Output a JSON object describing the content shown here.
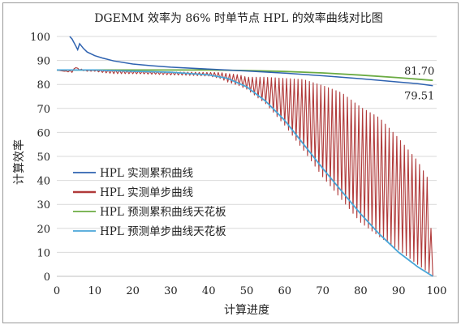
{
  "chart_data": {
    "type": "line",
    "title": "DGEMM 效率为 86% 时单节点 HPL 的效率曲线对比图",
    "xlabel": "计算进度",
    "ylabel": "计算效率",
    "xlim": [
      0,
      100
    ],
    "ylim": [
      0,
      100
    ],
    "xticks": [
      0,
      10,
      20,
      30,
      40,
      50,
      60,
      70,
      80,
      90,
      100
    ],
    "yticks": [
      0,
      10,
      20,
      30,
      40,
      50,
      60,
      70,
      80,
      90,
      100
    ],
    "grid": "horizontal",
    "legend_position": "middle-left",
    "series": [
      {
        "name": "HPL 实测累积曲线",
        "color": "#2e62b0",
        "x": [
          3.4,
          4,
          5,
          5.5,
          6,
          7,
          8,
          10,
          12,
          15,
          20,
          25,
          30,
          40,
          50,
          60,
          70,
          80,
          90,
          95,
          99
        ],
        "values": [
          100,
          99,
          96,
          94.5,
          97,
          95,
          93.5,
          92,
          91,
          89.8,
          88.5,
          87.8,
          87.2,
          86.4,
          85.6,
          84.7,
          83.6,
          82.4,
          81.0,
          80.3,
          79.51
        ]
      },
      {
        "name": "HPL 实测单步曲线",
        "color": "#b03a3a",
        "x": [
          0,
          2,
          4,
          5,
          6,
          8,
          10,
          12,
          15,
          18,
          20,
          25,
          30,
          35,
          40,
          43,
          45,
          48,
          50,
          55,
          60,
          65,
          70,
          75,
          80,
          85,
          90,
          95,
          98,
          99
        ],
        "values": [
          86,
          85.5,
          85,
          87,
          86,
          85.5,
          85.5,
          85,
          84.5,
          84.5,
          84.5,
          84.3,
          84,
          83.8,
          83.5,
          82.5,
          81,
          79.5,
          78,
          72,
          63,
          52.5,
          41.5,
          32,
          22.5,
          16.5,
          11,
          5,
          1.5,
          0
        ],
        "peaks": [
          86,
          85.5,
          86,
          87,
          86.5,
          86,
          86,
          86,
          86,
          85.8,
          85.6,
          85.4,
          85.2,
          85.1,
          85,
          85,
          84.5,
          84,
          83,
          83,
          82.5,
          82,
          79.5,
          76.5,
          70.5,
          66,
          57.5,
          48,
          40,
          0
        ]
      },
      {
        "name": "HPL 预测累积曲线天花板",
        "color": "#6bab43",
        "x": [
          0,
          10,
          20,
          30,
          40,
          50,
          60,
          70,
          80,
          90,
          95,
          99
        ],
        "values": [
          86,
          86,
          86,
          86,
          86,
          85.8,
          85.4,
          84.8,
          83.9,
          82.8,
          82.2,
          81.7
        ]
      },
      {
        "name": "HPL 预测单步曲线天花板",
        "color": "#49a6d8",
        "x": [
          0,
          10,
          20,
          30,
          40,
          45,
          50,
          55,
          60,
          65,
          70,
          75,
          80,
          85,
          90,
          95,
          99
        ],
        "values": [
          86,
          86,
          85.5,
          85.1,
          84,
          82.5,
          79,
          73,
          65,
          55,
          45,
          35.5,
          26,
          17.5,
          10,
          4,
          0
        ]
      }
    ],
    "annotations": [
      {
        "text": "81.70",
        "x": 99,
        "y": 81.7
      },
      {
        "text": "79.51",
        "x": 99,
        "y": 79.51
      }
    ]
  }
}
